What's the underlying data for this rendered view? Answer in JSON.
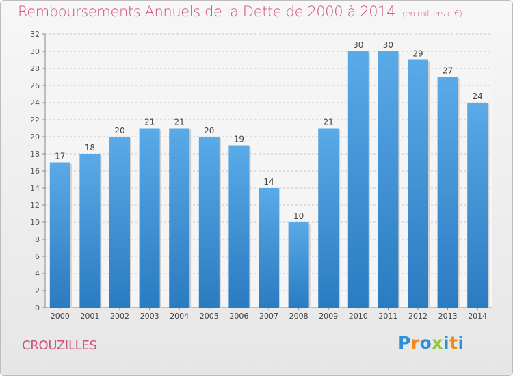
{
  "title": "Remboursements Annuels de la Dette de 2000 à 2014",
  "unit": "(en milliers d'€)",
  "commune": "CROUZILLES",
  "logo": {
    "text": "Proxiti",
    "letters": [
      "P",
      "r",
      "o",
      "x",
      "i",
      "t",
      "i"
    ],
    "colors": [
      "#2f8fd5",
      "#f28a1a",
      "#2f8fd5",
      "#8cc63f",
      "#2f8fd5",
      "#f28a1a",
      "#2f8fd5"
    ]
  },
  "colors": {
    "title": "#d0517f",
    "bar_top": "#5aaae8",
    "bar_bottom": "#2a7bc0",
    "grid": "#c8c8c8",
    "plot_bg": "#f5f5f5"
  },
  "chart_data": {
    "type": "bar",
    "categories": [
      "2000",
      "2001",
      "2002",
      "2003",
      "2004",
      "2005",
      "2006",
      "2007",
      "2008",
      "2009",
      "2010",
      "2011",
      "2012",
      "2013",
      "2014"
    ],
    "values": [
      17,
      18,
      20,
      21,
      21,
      20,
      19,
      14,
      10,
      21,
      30,
      30,
      29,
      27,
      24
    ],
    "ylim": [
      0,
      32
    ],
    "yticks": [
      0,
      2,
      4,
      6,
      8,
      10,
      12,
      14,
      16,
      18,
      20,
      22,
      24,
      26,
      28,
      30,
      32
    ],
    "grid": true,
    "data_labels": true
  }
}
